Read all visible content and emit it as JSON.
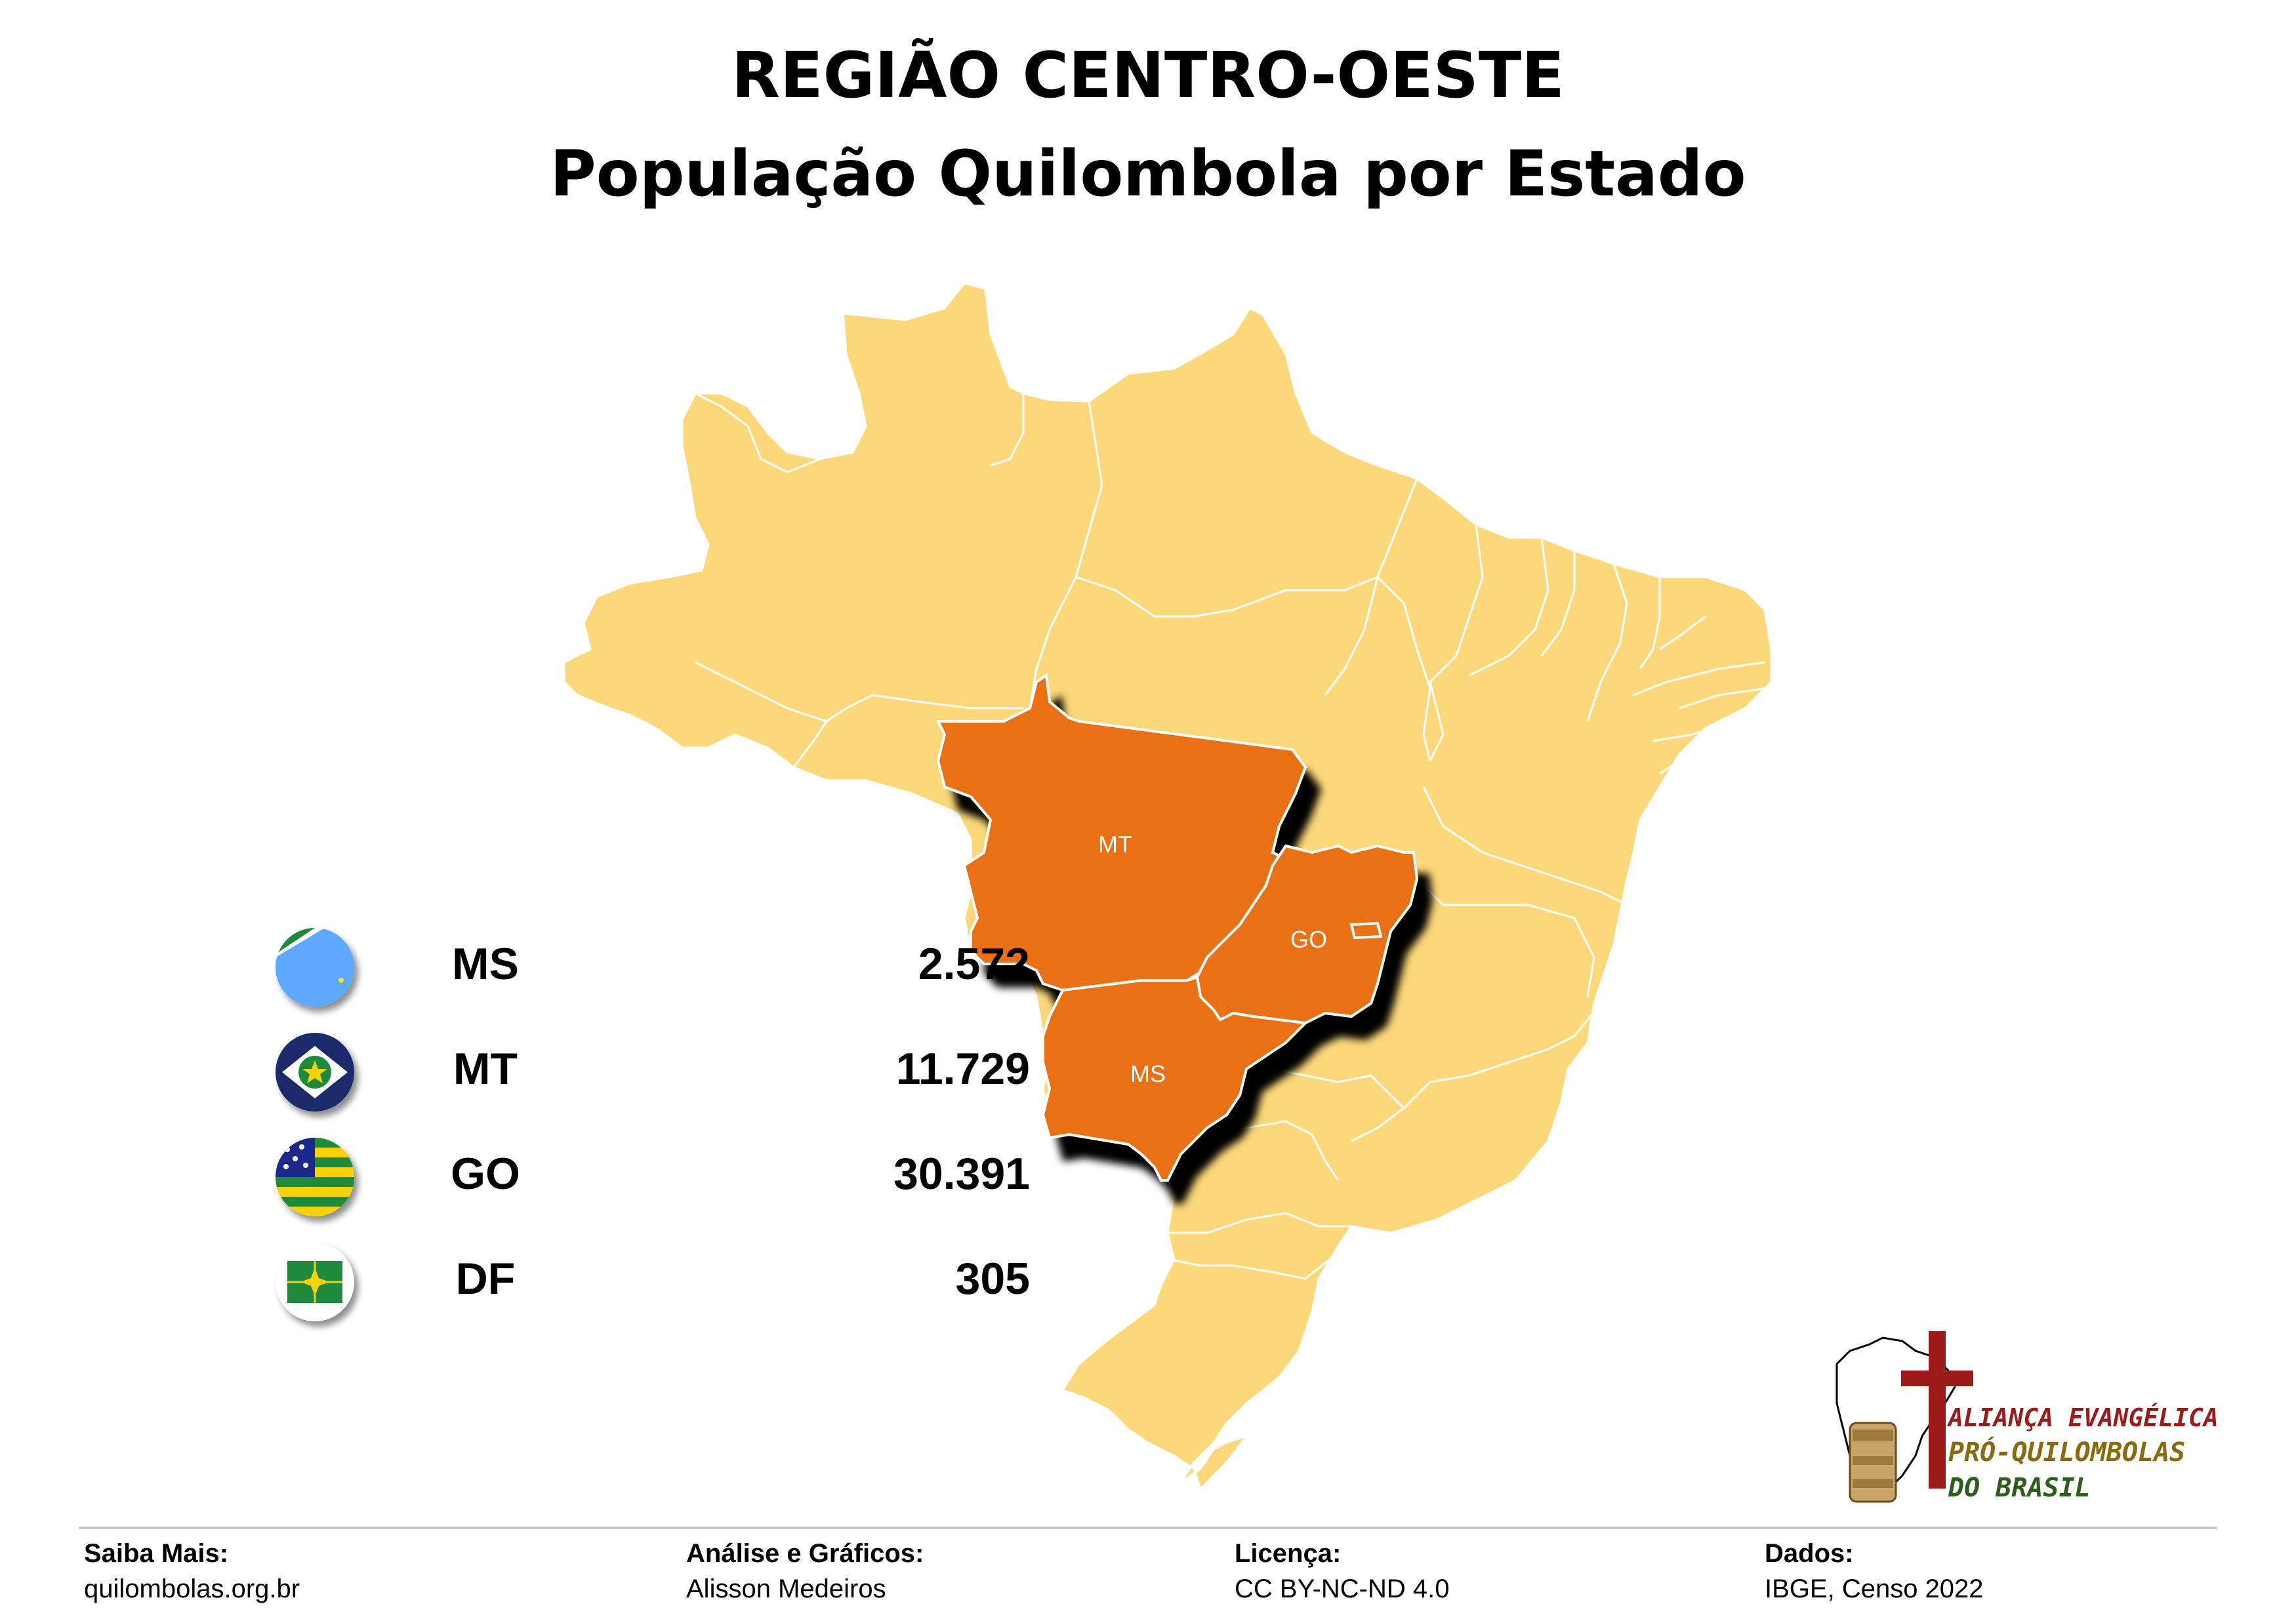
{
  "title": {
    "line1": "REGIÃO CENTRO-OESTE",
    "line2": "População Quilombola por Estado"
  },
  "colors": {
    "background": "#ffffff",
    "brazil_states": "#fdd87a",
    "highlighted_states": "#ea7016",
    "state_border": "#ffffff",
    "shadow": "#000000"
  },
  "map": {
    "highlighted_states": [
      "MT",
      "GO",
      "MS",
      "DF"
    ],
    "labels": {
      "mt": "MT",
      "go": "GO",
      "ms": "MS"
    }
  },
  "legend": {
    "rows": [
      {
        "code": "MS",
        "value": "2.572",
        "flag_icon": "mato-grosso-do-sul-flag-icon"
      },
      {
        "code": "MT",
        "value": "11.729",
        "flag_icon": "mato-grosso-flag-icon"
      },
      {
        "code": "GO",
        "value": "30.391",
        "flag_icon": "goias-flag-icon"
      },
      {
        "code": "DF",
        "value": "305",
        "flag_icon": "distrito-federal-flag-icon"
      }
    ]
  },
  "logo": {
    "line1": "ALIANÇA EVANGÉLICA",
    "line2": "PRÓ-QUILOMBOLAS",
    "line3": "DO BRASIL",
    "colors": {
      "red": "#9b1b1b",
      "olive": "#8a6a10",
      "green": "#2e5e1e"
    }
  },
  "footer": {
    "saiba_mais": {
      "label": "Saiba Mais:",
      "value": "quilombolas.org.br"
    },
    "analise": {
      "label": "Análise e Gráficos:",
      "value": "Alisson Medeiros"
    },
    "licenca": {
      "label": "Licença:",
      "value": "CC BY-NC-ND 4.0"
    },
    "dados": {
      "label": "Dados:",
      "value": "IBGE, Censo 2022"
    }
  }
}
